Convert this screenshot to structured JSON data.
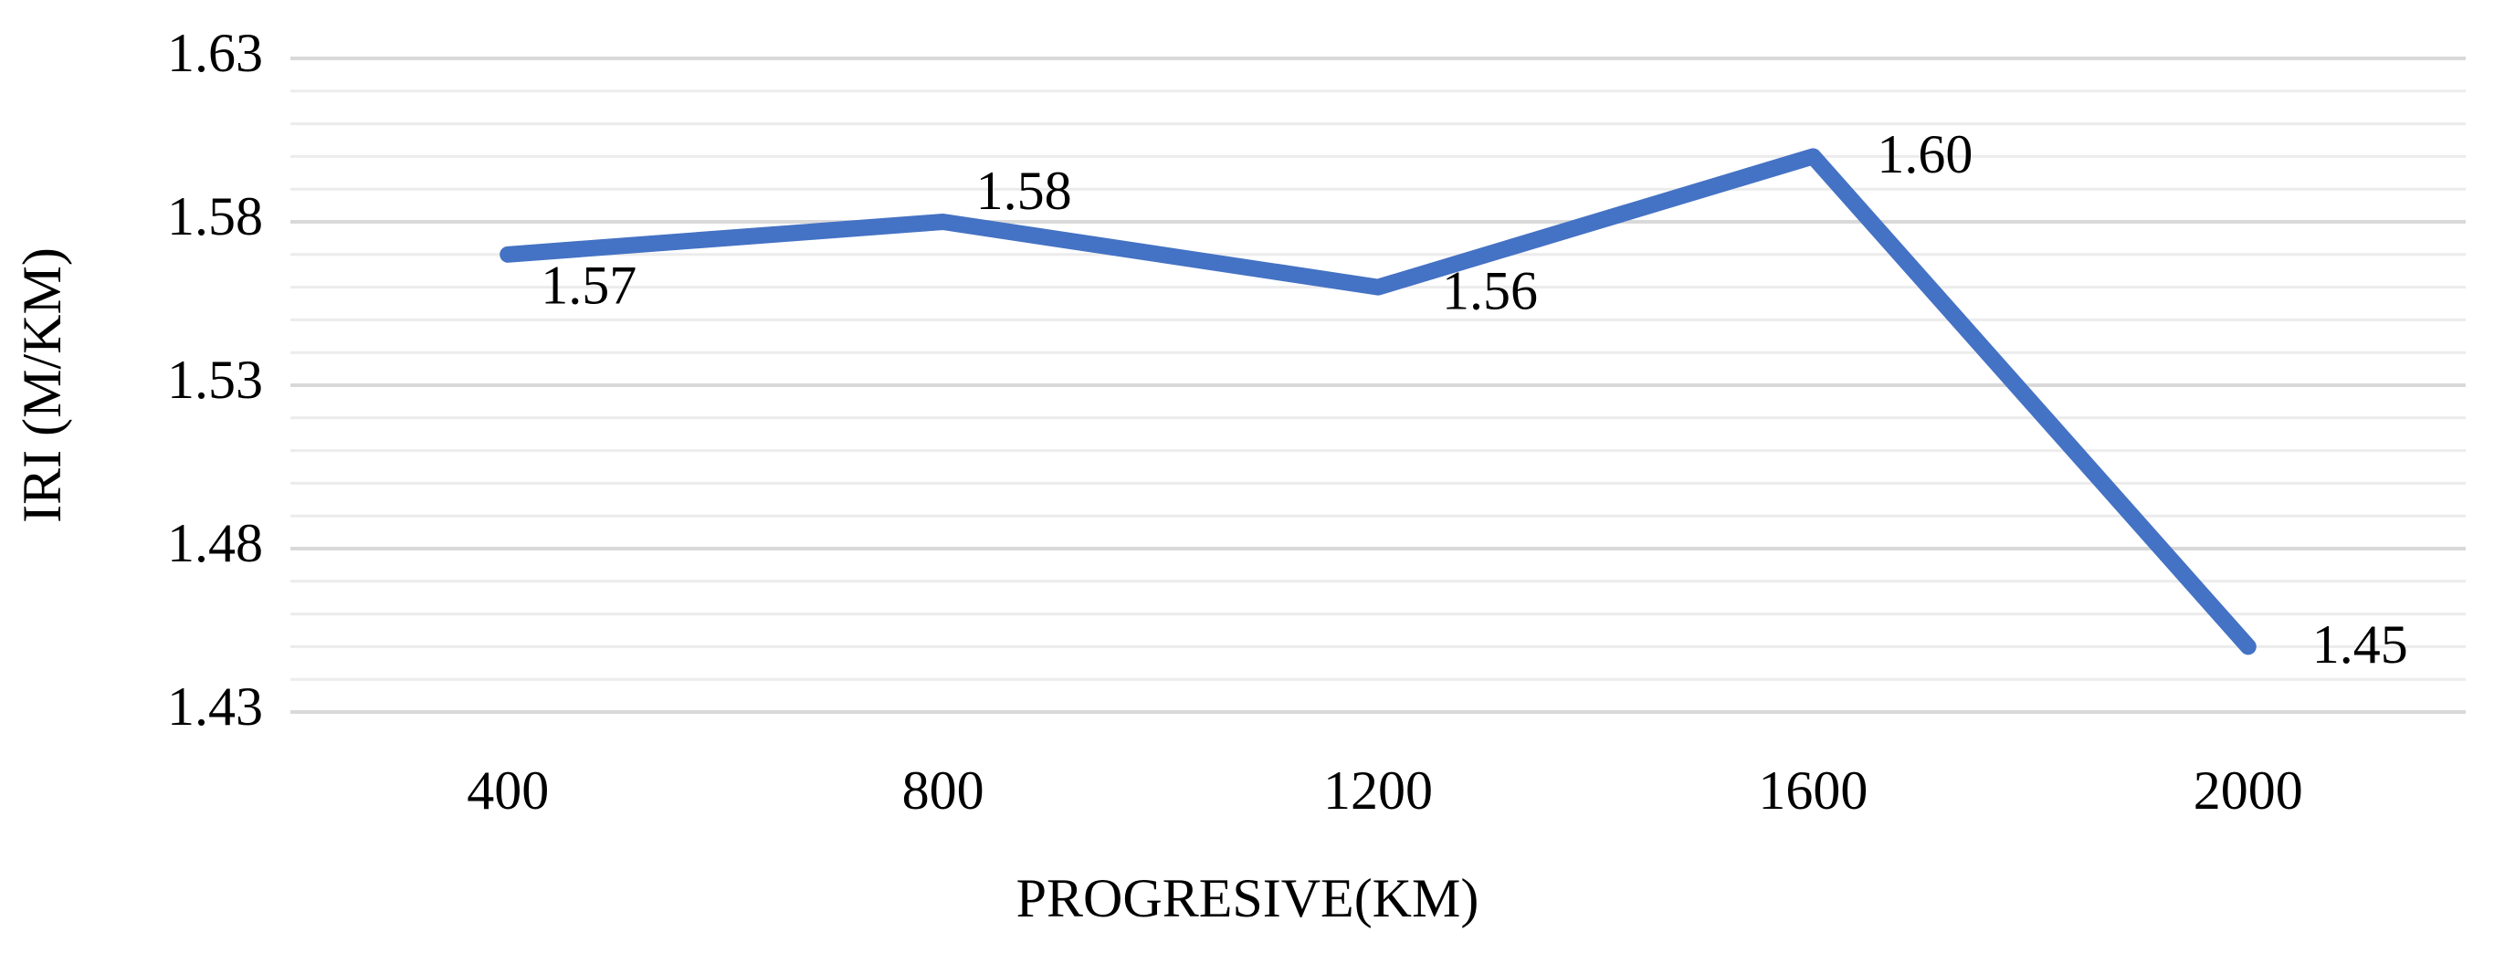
{
  "chart_data": {
    "type": "line",
    "x_label": "PROGRESIVE(KM)",
    "y_label": "IRI (M/KM)",
    "categories": [
      "400",
      "800",
      "1200",
      "1600",
      "2000"
    ],
    "series": [
      {
        "name": "IRI",
        "color": "#4472c4",
        "values": [
          1.57,
          1.58,
          1.56,
          1.6,
          1.45
        ],
        "value_labels": [
          "1.57",
          "1.58",
          "1.56",
          "1.60",
          "1.45"
        ]
      }
    ],
    "ylim": [
      1.43,
      1.63
    ],
    "yticks": [
      1.43,
      1.48,
      1.53,
      1.58,
      1.63
    ],
    "grid": true,
    "minor_ystep": 0.01,
    "legend": false
  }
}
